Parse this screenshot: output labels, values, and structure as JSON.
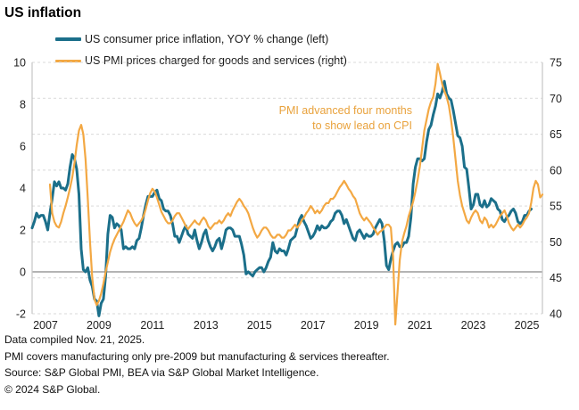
{
  "title": "US inflation",
  "legend": {
    "items": [
      {
        "label": "US consumer price inflation, YOY % change (left)",
        "color": "#1b6f8a"
      },
      {
        "label": "US PMI prices charged for goods and services (right)",
        "color": "#f3a843"
      }
    ]
  },
  "annotation": {
    "line1": "PMI advanced  four months",
    "line2": "to show lead on CPI",
    "color": "#e9a23c"
  },
  "footer": {
    "compiled": "Data compiled Nov. 21, 2025.",
    "note": "PMI covers manufacturing only pre-2009 but manufacturing & services thereafter.",
    "source": "Source: S&P Global PMI, BEA via S&P Global Market Intelligence.",
    "copyright": "© 2024 S&P Global."
  },
  "chart_data": {
    "type": "line",
    "title": "US inflation",
    "x_tick_labels": [
      "2007",
      "2009",
      "2011",
      "2013",
      "2015",
      "2017",
      "2019",
      "2021",
      "2023",
      "2025"
    ],
    "x_domain": {
      "start": "2007-01",
      "end": "2026-02"
    },
    "left_axis": {
      "label": "YOY % change",
      "ticks": [
        10,
        8,
        6,
        4,
        2,
        0,
        -2
      ],
      "range": [
        -2,
        10
      ],
      "zero_line": true
    },
    "right_axis": {
      "label": "PMI prices charged",
      "ticks": [
        75,
        70,
        65,
        60,
        55,
        50,
        45,
        40
      ],
      "range": [
        40,
        75
      ],
      "gridlines": true
    },
    "grid": {
      "color": "#d9d9d9",
      "zero_line_color": "#9b9b9b",
      "border_color": "#c6c6c6"
    },
    "series": [
      {
        "name": "US consumer price inflation, YOY % change (left)",
        "axis": "left",
        "color": "#1b6f8a",
        "stroke_width": 3,
        "start": "2007-01",
        "advance_months": 0,
        "values": [
          2.1,
          2.4,
          2.8,
          2.6,
          2.7,
          2.7,
          2.4,
          2.0,
          2.8,
          3.5,
          4.3,
          4.1,
          4.3,
          4.0,
          4.0,
          3.9,
          4.2,
          5.0,
          5.6,
          5.4,
          4.9,
          3.7,
          1.1,
          0.1,
          0.0,
          0.2,
          -0.4,
          -0.7,
          -1.3,
          -1.4,
          -2.1,
          -1.5,
          -1.3,
          -0.2,
          1.8,
          2.7,
          2.6,
          2.1,
          2.3,
          2.2,
          2.0,
          1.1,
          1.2,
          1.1,
          1.1,
          1.2,
          1.1,
          1.5,
          1.6,
          2.1,
          2.7,
          3.2,
          3.6,
          3.6,
          3.6,
          3.8,
          3.9,
          3.5,
          3.4,
          3.0,
          2.9,
          2.9,
          2.7,
          2.3,
          1.7,
          1.7,
          1.4,
          1.7,
          2.0,
          2.2,
          1.8,
          1.7,
          1.6,
          2.0,
          1.5,
          1.1,
          1.4,
          1.8,
          2.0,
          1.5,
          1.2,
          1.0,
          1.2,
          1.5,
          1.6,
          1.1,
          1.5,
          2.0,
          2.1,
          2.1,
          2.0,
          1.7,
          1.7,
          1.7,
          1.3,
          0.8,
          -0.1,
          0.0,
          -0.1,
          -0.2,
          0.0,
          0.1,
          0.2,
          0.2,
          0.0,
          0.2,
          0.5,
          0.7,
          1.4,
          1.0,
          0.9,
          1.1,
          1.0,
          1.0,
          0.8,
          1.1,
          1.5,
          1.6,
          1.7,
          2.1,
          2.5,
          2.7,
          2.4,
          2.2,
          1.9,
          1.6,
          1.7,
          1.9,
          2.2,
          2.0,
          2.2,
          2.1,
          2.1,
          2.2,
          2.4,
          2.5,
          2.8,
          2.9,
          2.9,
          2.7,
          2.3,
          2.5,
          2.2,
          1.9,
          1.6,
          1.5,
          1.9,
          2.0,
          1.8,
          1.6,
          1.8,
          1.7,
          1.7,
          1.8,
          2.1,
          2.3,
          2.5,
          2.3,
          1.5,
          0.3,
          0.1,
          0.6,
          1.0,
          1.3,
          1.4,
          1.2,
          1.2,
          1.4,
          1.4,
          1.7,
          2.6,
          4.2,
          5.0,
          5.4,
          5.4,
          5.3,
          5.4,
          6.2,
          6.8,
          7.0,
          7.5,
          7.9,
          8.5,
          8.3,
          8.6,
          9.1,
          8.5,
          8.3,
          8.2,
          7.7,
          7.1,
          6.5,
          6.4,
          6.0,
          5.0,
          4.9,
          4.0,
          3.0,
          3.2,
          3.7,
          3.7,
          3.2,
          3.1,
          3.4,
          3.1,
          3.2,
          3.5,
          3.4,
          3.3,
          3.0,
          2.9,
          2.5,
          2.4,
          2.6,
          2.7,
          2.9,
          3.0,
          2.8,
          2.4,
          2.3,
          2.4,
          2.7,
          2.7,
          2.9,
          3.0
        ]
      },
      {
        "name": "US PMI prices charged for goods and services (right)",
        "axis": "right",
        "color": "#f3a843",
        "stroke_width": 2.2,
        "start": "2007-05",
        "advance_months": 4,
        "values": [
          58.0,
          54.0,
          52.8,
          52.2,
          52.0,
          52.8,
          54.0,
          55.0,
          56.2,
          57.5,
          59.0,
          61.0,
          63.5,
          65.5,
          66.3,
          65.0,
          61.5,
          56.0,
          50.0,
          45.0,
          42.0,
          41.2,
          41.8,
          42.8,
          44.2,
          45.8,
          47.2,
          48.6,
          49.6,
          50.4,
          51.0,
          51.6,
          52.2,
          52.8,
          53.6,
          54.4,
          54.0,
          53.2,
          52.6,
          52.2,
          52.6,
          53.0,
          53.6,
          54.6,
          55.8,
          56.8,
          57.4,
          57.0,
          56.2,
          55.2,
          54.2,
          53.6,
          53.0,
          52.6,
          52.6,
          53.0,
          53.6,
          54.0,
          54.0,
          53.4,
          52.8,
          52.2,
          51.8,
          52.2,
          52.6,
          53.0,
          52.6,
          52.4,
          53.0,
          53.4,
          53.0,
          52.2,
          51.8,
          52.2,
          52.6,
          52.6,
          53.0,
          52.6,
          53.0,
          53.6,
          54.0,
          53.6,
          54.4,
          55.0,
          55.6,
          56.0,
          55.6,
          55.0,
          54.6,
          54.0,
          53.0,
          52.0,
          51.2,
          50.6,
          51.0,
          51.6,
          52.0,
          52.0,
          51.6,
          51.0,
          50.6,
          50.6,
          51.0,
          51.0,
          50.6,
          50.6,
          51.0,
          51.6,
          51.6,
          52.0,
          52.4,
          52.0,
          52.4,
          53.0,
          53.4,
          54.0,
          54.4,
          55.0,
          54.6,
          54.0,
          54.4,
          54.0,
          54.4,
          55.0,
          55.4,
          55.4,
          56.0,
          56.0,
          56.4,
          57.0,
          57.6,
          58.0,
          58.5,
          58.0,
          57.4,
          57.0,
          56.4,
          56.0,
          55.0,
          54.0,
          53.4,
          53.0,
          53.4,
          53.0,
          52.6,
          52.0,
          51.6,
          51.0,
          51.4,
          51.6,
          52.0,
          52.4,
          52.4,
          52.0,
          48.0,
          38.5,
          43.0,
          47.5,
          50.0,
          51.2,
          52.2,
          53.6,
          54.6,
          55.6,
          57.0,
          58.6,
          60.5,
          63.0,
          65.5,
          67.0,
          68.5,
          69.5,
          70.2,
          72.0,
          74.8,
          73.5,
          72.0,
          71.0,
          70.2,
          69.0,
          67.0,
          64.5,
          61.5,
          58.5,
          56.5,
          55.0,
          54.0,
          53.0,
          52.6,
          53.4,
          54.0,
          54.4,
          54.0,
          53.0,
          52.6,
          53.4,
          53.0,
          52.0,
          52.4,
          52.0,
          52.4,
          53.0,
          53.6,
          54.0,
          54.4,
          53.6,
          52.6,
          52.0,
          51.6,
          52.0,
          52.4,
          52.0,
          52.4,
          53.0,
          53.4,
          54.0,
          55.5,
          57.5,
          58.5,
          58.0,
          56.2,
          56.6
        ]
      }
    ]
  }
}
